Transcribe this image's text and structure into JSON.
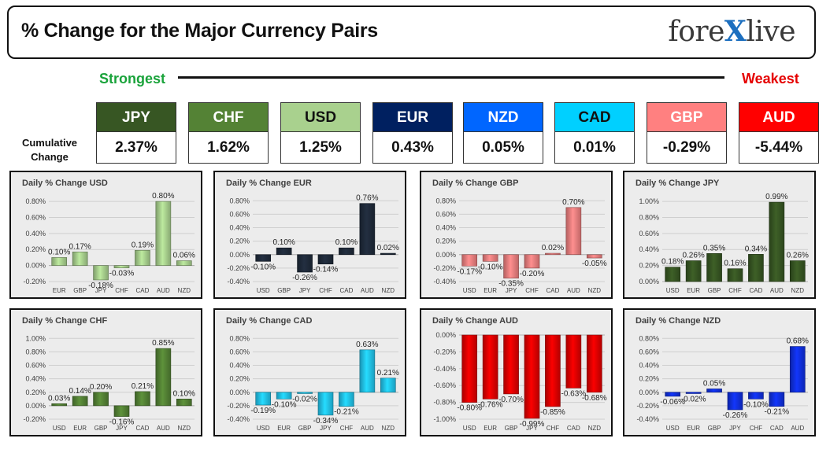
{
  "header": {
    "title": "% Change for the Major Currency Pairs",
    "logo_pre": "fore",
    "logo_x": "X",
    "logo_post": "live"
  },
  "strength": {
    "strongest_label": "Strongest",
    "weakest_label": "Weakest",
    "cumulative_label_1": "Cumulative",
    "cumulative_label_2": "Change"
  },
  "currencies": [
    {
      "name": "JPY",
      "value": "2.37%",
      "bg": "#375623",
      "fg": "#ffffff"
    },
    {
      "name": "CHF",
      "value": "1.62%",
      "bg": "#548235",
      "fg": "#ffffff"
    },
    {
      "name": "USD",
      "value": "1.25%",
      "bg": "#a9d18e",
      "fg": "#111111"
    },
    {
      "name": "EUR",
      "value": "0.43%",
      "bg": "#002060",
      "fg": "#ffffff"
    },
    {
      "name": "NZD",
      "value": "0.05%",
      "bg": "#0066ff",
      "fg": "#ffffff"
    },
    {
      "name": "CAD",
      "value": "0.01%",
      "bg": "#00d0ff",
      "fg": "#111111"
    },
    {
      "name": "GBP",
      "value": "-0.29%",
      "bg": "#ff8080",
      "fg": "#ffffff"
    },
    {
      "name": "AUD",
      "value": "-5.44%",
      "bg": "#ff0000",
      "fg": "#ffffff"
    }
  ],
  "chart_data": [
    {
      "type": "bar",
      "title": "Daily % Change USD",
      "categories": [
        "EUR",
        "GBP",
        "JPY",
        "CHF",
        "CAD",
        "AUD",
        "NZD"
      ],
      "values": [
        0.1,
        0.17,
        -0.18,
        -0.03,
        0.19,
        0.8,
        0.06
      ],
      "labels": [
        "0.10%",
        "0.17%",
        "-0.18%",
        "-0.03%",
        "0.19%",
        "0.80%",
        "0.06%"
      ],
      "ticks": [
        0.8,
        0.6,
        0.4,
        0.2,
        0.0,
        -0.2
      ],
      "tick_labels": [
        "0.80%",
        "0.60%",
        "0.40%",
        "0.20%",
        "0.00%",
        "-0.20%"
      ],
      "ylim": [
        -0.2,
        0.85
      ],
      "color": "#a9d18e"
    },
    {
      "type": "bar",
      "title": "Daily % Change EUR",
      "categories": [
        "USD",
        "GBP",
        "JPY",
        "CHF",
        "CAD",
        "AUD",
        "NZD"
      ],
      "values": [
        -0.1,
        0.1,
        -0.26,
        -0.14,
        0.1,
        0.76,
        0.02
      ],
      "labels": [
        "-0.10%",
        "0.10%",
        "-0.26%",
        "-0.14%",
        "0.10%",
        "0.76%",
        "0.02%"
      ],
      "ticks": [
        0.8,
        0.6,
        0.4,
        0.2,
        0.0,
        -0.2,
        -0.4
      ],
      "tick_labels": [
        "0.80%",
        "0.60%",
        "0.40%",
        "0.20%",
        "0.00%",
        "-0.20%",
        "-0.40%"
      ],
      "ylim": [
        -0.4,
        0.85
      ],
      "color": "#1f2a3a"
    },
    {
      "type": "bar",
      "title": "Daily % Change GBP",
      "categories": [
        "USD",
        "EUR",
        "JPY",
        "CHF",
        "CAD",
        "AUD",
        "NZD"
      ],
      "values": [
        -0.17,
        -0.1,
        -0.35,
        -0.2,
        0.02,
        0.7,
        -0.05
      ],
      "labels": [
        "-0.17%",
        "-0.10%",
        "-0.35%",
        "-0.20%",
        "0.02%",
        "0.70%",
        "-0.05%"
      ],
      "ticks": [
        0.8,
        0.6,
        0.4,
        0.2,
        0.0,
        -0.2,
        -0.4
      ],
      "tick_labels": [
        "0.80%",
        "0.60%",
        "0.40%",
        "0.20%",
        "0.00%",
        "-0.20%",
        "-0.40%"
      ],
      "ylim": [
        -0.4,
        0.85
      ],
      "color": "#f08080"
    },
    {
      "type": "bar",
      "title": "Daily % Change JPY",
      "categories": [
        "USD",
        "EUR",
        "GBP",
        "CHF",
        "CAD",
        "AUD",
        "NZD"
      ],
      "values": [
        0.18,
        0.26,
        0.35,
        0.16,
        0.34,
        0.99,
        0.26
      ],
      "labels": [
        "0.18%",
        "0.26%",
        "0.35%",
        "0.16%",
        "0.34%",
        "0.99%",
        "0.26%"
      ],
      "ticks": [
        1.0,
        0.8,
        0.6,
        0.4,
        0.2,
        0.0
      ],
      "tick_labels": [
        "1.00%",
        "0.80%",
        "0.60%",
        "0.40%",
        "0.20%",
        "0.00%"
      ],
      "ylim": [
        0.0,
        1.05
      ],
      "color": "#375623"
    },
    {
      "type": "bar",
      "title": "Daily % Change CHF",
      "categories": [
        "USD",
        "EUR",
        "GBP",
        "JPY",
        "CAD",
        "AUD",
        "NZD"
      ],
      "values": [
        0.03,
        0.14,
        0.2,
        -0.16,
        0.21,
        0.85,
        0.1
      ],
      "labels": [
        "0.03%",
        "0.14%",
        "0.20%",
        "-0.16%",
        "0.21%",
        "0.85%",
        "0.10%"
      ],
      "ticks": [
        1.0,
        0.8,
        0.6,
        0.4,
        0.2,
        0.0,
        -0.2
      ],
      "tick_labels": [
        "1.00%",
        "0.80%",
        "0.60%",
        "0.40%",
        "0.20%",
        "0.00%",
        "-0.20%"
      ],
      "ylim": [
        -0.2,
        1.05
      ],
      "color": "#548235"
    },
    {
      "type": "bar",
      "title": "Daily % Change CAD",
      "categories": [
        "USD",
        "EUR",
        "GBP",
        "JPY",
        "CHF",
        "AUD",
        "NZD"
      ],
      "values": [
        -0.19,
        -0.1,
        -0.02,
        -0.34,
        -0.21,
        0.63,
        0.21
      ],
      "labels": [
        "-0.19%",
        "-0.10%",
        "-0.02%",
        "-0.34%",
        "-0.21%",
        "0.63%",
        "0.21%"
      ],
      "ticks": [
        0.8,
        0.6,
        0.4,
        0.2,
        0.0,
        -0.2,
        -0.4
      ],
      "tick_labels": [
        "0.80%",
        "0.60%",
        "0.40%",
        "0.20%",
        "0.00%",
        "-0.20%",
        "-0.40%"
      ],
      "ylim": [
        -0.4,
        0.85
      ],
      "color": "#22c4ee"
    },
    {
      "type": "bar",
      "title": "Daily % Change AUD",
      "categories": [
        "USD",
        "EUR",
        "GBP",
        "JPY",
        "CHF",
        "CAD",
        "NZD"
      ],
      "values": [
        -0.8,
        -0.76,
        -0.7,
        -0.99,
        -0.85,
        -0.63,
        -0.68
      ],
      "labels": [
        "-0.80%",
        "-0.76%",
        "-0.70%",
        "-0.99%",
        "-0.85%",
        "-0.63%",
        "-0.68%"
      ],
      "ticks": [
        0.0,
        -0.2,
        -0.4,
        -0.6,
        -0.8,
        -1.0
      ],
      "tick_labels": [
        "0.00%",
        "-0.20%",
        "-0.40%",
        "-0.60%",
        "-0.80%",
        "-1.00%"
      ],
      "ylim": [
        -1.0,
        0.0
      ],
      "color": "#e00000"
    },
    {
      "type": "bar",
      "title": "Daily % Change NZD",
      "categories": [
        "USD",
        "EUR",
        "GBP",
        "JPY",
        "CHF",
        "CAD",
        "AUD"
      ],
      "values": [
        -0.06,
        -0.02,
        0.05,
        -0.26,
        -0.1,
        -0.21,
        0.68
      ],
      "labels": [
        "-0.06%",
        "-0.02%",
        "0.05%",
        "-0.26%",
        "-0.10%",
        "-0.21%",
        "0.68%"
      ],
      "ticks": [
        0.8,
        0.6,
        0.4,
        0.2,
        0.0,
        -0.2,
        -0.4
      ],
      "tick_labels": [
        "0.80%",
        "0.60%",
        "0.40%",
        "0.20%",
        "0.00%",
        "-0.20%",
        "-0.40%"
      ],
      "ylim": [
        -0.4,
        0.85
      ],
      "color": "#1030e0"
    }
  ]
}
